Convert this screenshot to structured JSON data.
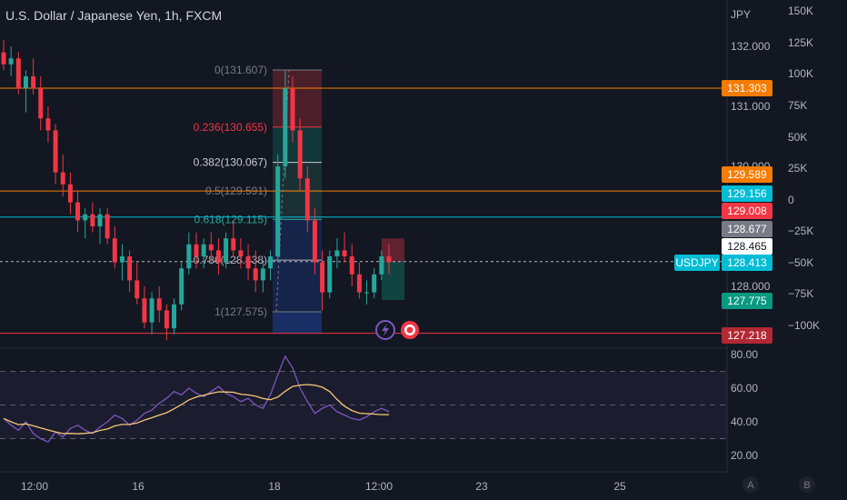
{
  "header": {
    "title": "U.S. Dollar / Japanese Yen, 1h, FXCM"
  },
  "chart_data": {
    "type": "candlestick",
    "symbol": "USDJPY",
    "price_axis": {
      "unit": "JPY",
      "ticks": [
        "132.000",
        "131.000",
        "130.000",
        "128.000"
      ]
    },
    "volume_axis": {
      "ticks": [
        "150K",
        "125K",
        "100K",
        "75K",
        "50K",
        "25K",
        "0",
        "−25K",
        "−50K",
        "−75K",
        "−100K"
      ]
    },
    "time_axis": {
      "ticks": [
        "12:00",
        "16",
        "18",
        "12:00",
        "23",
        "25"
      ]
    },
    "price_tags": [
      {
        "value": "131.303",
        "color": "#f57c00"
      },
      {
        "value": "129.589",
        "color": "#f57c00"
      },
      {
        "value": "129.156",
        "color": "#00bcd4"
      },
      {
        "value": "129.008",
        "color": "#f23645"
      },
      {
        "value": "128.677",
        "color": "#787b86"
      },
      {
        "value": "128.465",
        "color": "#ffffff"
      },
      {
        "value": "128.413",
        "color": "#00bcd4",
        "symbol": "USDJPY"
      },
      {
        "value": "127.775",
        "color": "#089981"
      },
      {
        "value": "127.218",
        "color": "#b22833"
      }
    ],
    "fibonacci": [
      {
        "label": "0(131.607)",
        "level": 0,
        "price": 131.607,
        "color": "#787b86"
      },
      {
        "label": "0.236(130.655)",
        "level": 0.236,
        "price": 130.655,
        "color": "#f23645"
      },
      {
        "label": "0.382(130.067)",
        "level": 0.382,
        "price": 130.067,
        "color": "#c9ccd4"
      },
      {
        "label": "0.5(129.591)",
        "level": 0.5,
        "price": 129.591,
        "color": "#787b86"
      },
      {
        "label": "0.618(129.115)",
        "level": 0.618,
        "price": 129.115,
        "color": "#26a69a"
      },
      {
        "label": "0.786(128.438)",
        "level": 0.786,
        "price": 128.438,
        "color": "#b2b5be"
      },
      {
        "label": "1(127.575)",
        "level": 1,
        "price": 127.575,
        "color": "#787b86"
      }
    ],
    "horizontal_lines": [
      {
        "price": 131.303,
        "color": "#f57c00"
      },
      {
        "price": 129.589,
        "color": "#f57c00"
      },
      {
        "price": 129.156,
        "color": "#00bcd4"
      },
      {
        "price": 128.413,
        "color": "#b2b5be"
      },
      {
        "price": 127.218,
        "color": "#f23645"
      }
    ],
    "candles": [
      [
        131.9,
        132.1,
        131.6,
        131.7
      ],
      [
        131.7,
        132.0,
        131.5,
        131.8
      ],
      [
        131.8,
        131.9,
        131.2,
        131.3
      ],
      [
        131.3,
        131.6,
        130.9,
        131.5
      ],
      [
        131.5,
        131.8,
        131.2,
        131.3
      ],
      [
        131.3,
        131.5,
        130.6,
        130.8
      ],
      [
        130.8,
        131.0,
        130.4,
        130.6
      ],
      [
        130.6,
        130.7,
        129.7,
        129.9
      ],
      [
        129.9,
        130.2,
        129.5,
        129.7
      ],
      [
        129.7,
        129.9,
        129.2,
        129.4
      ],
      [
        129.4,
        129.6,
        128.9,
        129.1
      ],
      [
        129.1,
        129.3,
        128.8,
        129.2
      ],
      [
        129.2,
        129.4,
        128.9,
        129.0
      ],
      [
        129.0,
        129.3,
        128.7,
        129.2
      ],
      [
        129.2,
        129.3,
        128.7,
        128.8
      ],
      [
        128.8,
        129.0,
        128.3,
        128.4
      ],
      [
        128.4,
        128.7,
        128.1,
        128.5
      ],
      [
        128.5,
        128.6,
        127.9,
        128.1
      ],
      [
        128.1,
        128.4,
        127.7,
        127.8
      ],
      [
        127.8,
        128.0,
        127.3,
        127.4
      ],
      [
        127.4,
        127.9,
        127.2,
        127.8
      ],
      [
        127.8,
        128.0,
        127.4,
        127.6
      ],
      [
        127.6,
        127.7,
        127.1,
        127.3
      ],
      [
        127.3,
        127.8,
        127.2,
        127.7
      ],
      [
        127.7,
        128.4,
        127.6,
        128.3
      ],
      [
        128.3,
        128.9,
        128.2,
        128.7
      ],
      [
        128.7,
        128.9,
        128.3,
        128.5
      ],
      [
        128.5,
        128.8,
        128.3,
        128.7
      ],
      [
        128.7,
        128.9,
        128.4,
        128.6
      ],
      [
        128.6,
        128.8,
        128.2,
        128.4
      ],
      [
        128.4,
        128.9,
        128.3,
        128.8
      ],
      [
        128.8,
        129.1,
        128.5,
        128.6
      ],
      [
        128.6,
        128.8,
        128.3,
        128.5
      ],
      [
        128.5,
        128.7,
        128.1,
        128.3
      ],
      [
        128.3,
        128.6,
        127.9,
        128.1
      ],
      [
        128.1,
        128.4,
        127.9,
        128.3
      ],
      [
        128.3,
        128.6,
        128.1,
        128.5
      ],
      [
        128.5,
        130.2,
        128.4,
        130.0
      ],
      [
        130.0,
        131.6,
        129.8,
        131.3
      ],
      [
        131.3,
        131.5,
        130.4,
        130.6
      ],
      [
        130.6,
        130.8,
        129.6,
        129.8
      ],
      [
        129.8,
        130.0,
        128.9,
        129.1
      ],
      [
        129.1,
        129.3,
        128.2,
        128.4
      ],
      [
        128.4,
        128.6,
        127.6,
        127.9
      ],
      [
        127.9,
        128.6,
        127.8,
        128.5
      ],
      [
        128.5,
        128.8,
        128.3,
        128.6
      ],
      [
        128.6,
        128.9,
        128.4,
        128.5
      ],
      [
        128.5,
        128.7,
        128.0,
        128.2
      ],
      [
        128.2,
        128.4,
        127.8,
        127.9
      ],
      [
        127.9,
        128.1,
        127.7,
        127.9
      ],
      [
        127.9,
        128.3,
        127.8,
        128.2
      ],
      [
        128.2,
        128.6,
        128.1,
        128.5
      ],
      [
        128.5,
        128.7,
        128.2,
        128.4
      ]
    ],
    "rsi": {
      "axis_ticks": [
        "80.00",
        "60.00",
        "40.00",
        "20.00"
      ],
      "levels": [
        70,
        50,
        30
      ],
      "values": [
        42,
        38,
        35,
        40,
        33,
        30,
        28,
        34,
        31,
        36,
        38,
        35,
        33,
        37,
        40,
        44,
        42,
        38,
        41,
        45,
        47,
        51,
        54,
        58,
        56,
        60,
        57,
        55,
        58,
        61,
        57,
        55,
        52,
        54,
        50,
        48,
        56,
        68,
        79,
        72,
        60,
        52,
        45,
        48,
        50,
        46,
        44,
        42,
        41,
        43,
        46,
        48,
        46
      ]
    },
    "toolbar_icons": [
      "lightning-icon",
      "record-icon"
    ],
    "bottom_right_labels": [
      "A",
      "B"
    ]
  }
}
